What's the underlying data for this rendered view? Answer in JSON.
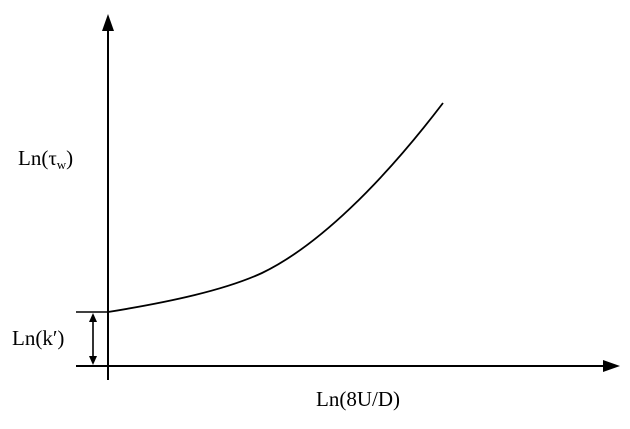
{
  "y_axis": {
    "label_main": "Ln(τ",
    "label_sub": "w",
    "label_close": ")"
  },
  "x_axis": {
    "label": "Ln(8U/D)"
  },
  "intercept": {
    "label": "Ln(k′)"
  },
  "colors": {
    "line": "#000000",
    "background": "#ffffff"
  }
}
